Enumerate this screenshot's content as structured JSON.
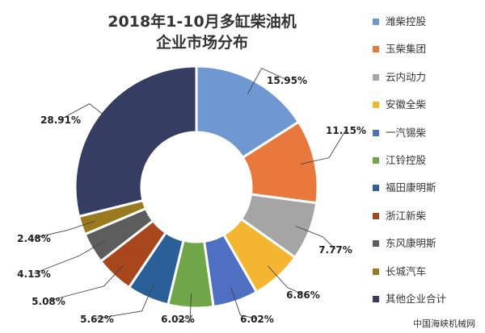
{
  "chart_data": {
    "type": "pie",
    "donut": true,
    "title": [
      "2018年1-10月多缸柴油机",
      "企业市场分布"
    ],
    "categories": [
      "潍柴控股",
      "玉柴集团",
      "云内动力",
      "安徽全柴",
      "一汽锡柴",
      "江铃控股",
      "福田康明斯",
      "浙江新柴",
      "东风康明斯",
      "长城汽车",
      "其他企业合计"
    ],
    "values": [
      15.95,
      11.15,
      7.77,
      6.86,
      6.02,
      6.02,
      5.62,
      5.08,
      4.13,
      2.48,
      28.91
    ],
    "data_labels": [
      "15.95%",
      "11.15%",
      "7.77%",
      "6.86%",
      "6.02%",
      "6.02%",
      "5.62%",
      "5.08%",
      "4.13%",
      "2.48%",
      "28.91%"
    ],
    "colors": [
      "#6f97d2",
      "#e8783c",
      "#a5a5a5",
      "#f4b531",
      "#4f6fc3",
      "#6fa64a",
      "#2b5f97",
      "#a9471c",
      "#5d5d5d",
      "#9b7a1f",
      "#363d62"
    ],
    "legend_position": "right"
  },
  "watermark": "中国海峡机械网"
}
